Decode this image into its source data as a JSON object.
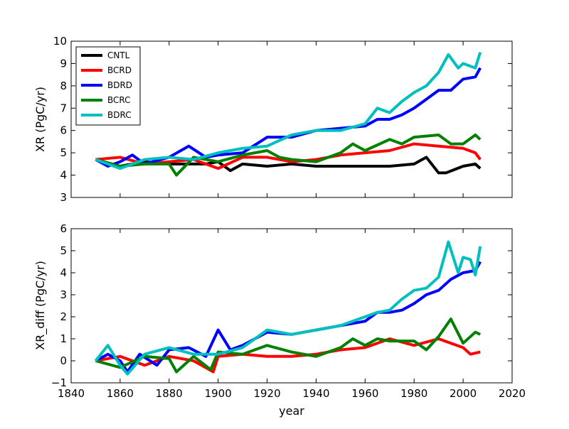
{
  "chart_data": [
    {
      "type": "line",
      "panel": "top",
      "title": "",
      "xlabel": "",
      "ylabel": "XR (PgC/yr)",
      "xlim": [
        1840,
        2020
      ],
      "ylim": [
        3,
        10
      ],
      "xticks": [
        1840,
        1860,
        1880,
        1900,
        1920,
        1940,
        1960,
        1980,
        2000,
        2020
      ],
      "yticks": [
        3,
        4,
        5,
        6,
        7,
        8,
        9,
        10
      ],
      "xtick_labels_visible": false,
      "legend": {
        "position": "top-left",
        "entries": [
          "CNTL",
          "BCRD",
          "BDRD",
          "BCRC",
          "BDRC"
        ]
      },
      "series": [
        {
          "name": "CNTL",
          "color": "#000000",
          "x": [
            1850,
            1860,
            1870,
            1880,
            1890,
            1895,
            1900,
            1905,
            1910,
            1920,
            1930,
            1940,
            1950,
            1960,
            1970,
            1980,
            1985,
            1990,
            1993,
            2000,
            2005,
            2007
          ],
          "values": [
            4.7,
            4.4,
            4.6,
            4.5,
            4.5,
            4.5,
            4.6,
            4.2,
            4.5,
            4.4,
            4.5,
            4.4,
            4.4,
            4.4,
            4.4,
            4.5,
            4.8,
            4.1,
            4.1,
            4.4,
            4.5,
            4.3
          ]
        },
        {
          "name": "BCRD",
          "color": "#ff0000",
          "x": [
            1850,
            1860,
            1870,
            1880,
            1890,
            1900,
            1910,
            1920,
            1930,
            1940,
            1950,
            1960,
            1970,
            1980,
            1990,
            2000,
            2005,
            2007
          ],
          "values": [
            4.7,
            4.8,
            4.5,
            4.6,
            4.7,
            4.3,
            4.8,
            4.8,
            4.6,
            4.7,
            4.9,
            5.0,
            5.1,
            5.4,
            5.3,
            5.2,
            5.0,
            4.7
          ]
        },
        {
          "name": "BDRD",
          "color": "#0000ff",
          "x": [
            1850,
            1855,
            1860,
            1865,
            1870,
            1880,
            1888,
            1895,
            1900,
            1910,
            1920,
            1930,
            1940,
            1950,
            1960,
            1965,
            1970,
            1975,
            1980,
            1985,
            1990,
            1995,
            2000,
            2005,
            2007
          ],
          "values": [
            4.7,
            4.4,
            4.6,
            4.9,
            4.5,
            4.8,
            5.3,
            4.8,
            4.9,
            5.0,
            5.7,
            5.7,
            6.0,
            6.1,
            6.2,
            6.5,
            6.5,
            6.7,
            7.0,
            7.4,
            7.8,
            7.8,
            8.3,
            8.4,
            8.8
          ]
        },
        {
          "name": "BCRC",
          "color": "#008000",
          "x": [
            1850,
            1860,
            1870,
            1880,
            1883,
            1890,
            1900,
            1910,
            1920,
            1925,
            1930,
            1940,
            1950,
            1955,
            1960,
            1970,
            1975,
            1980,
            1990,
            1995,
            2000,
            2005,
            2007
          ],
          "values": [
            4.7,
            4.4,
            4.5,
            4.5,
            4.0,
            4.8,
            4.6,
            4.9,
            5.1,
            4.8,
            4.7,
            4.6,
            5.0,
            5.4,
            5.1,
            5.6,
            5.4,
            5.7,
            5.8,
            5.4,
            5.4,
            5.8,
            5.6
          ]
        },
        {
          "name": "BDRC",
          "color": "#00bfbf",
          "x": [
            1850,
            1860,
            1870,
            1880,
            1890,
            1900,
            1910,
            1920,
            1930,
            1940,
            1950,
            1960,
            1965,
            1970,
            1975,
            1980,
            1985,
            1990,
            1994,
            1998,
            2000,
            2005,
            2007
          ],
          "values": [
            4.7,
            4.3,
            4.7,
            4.8,
            4.7,
            5.0,
            5.2,
            5.3,
            5.8,
            6.0,
            6.0,
            6.3,
            7.0,
            6.8,
            7.3,
            7.7,
            8.0,
            8.6,
            9.4,
            8.8,
            9.0,
            8.8,
            9.5
          ]
        }
      ]
    },
    {
      "type": "line",
      "panel": "bottom",
      "title": "",
      "xlabel": "year",
      "ylabel": "XR_diff (PgC/yr)",
      "xlim": [
        1840,
        2020
      ],
      "ylim": [
        -1,
        6
      ],
      "xticks": [
        1840,
        1860,
        1880,
        1900,
        1920,
        1940,
        1960,
        1980,
        2000,
        2020
      ],
      "yticks": [
        -1,
        0,
        1,
        2,
        3,
        4,
        5,
        6
      ],
      "series": [
        {
          "name": "BCRD",
          "color": "#ff0000",
          "x": [
            1850,
            1860,
            1870,
            1880,
            1890,
            1898,
            1900,
            1910,
            1920,
            1930,
            1940,
            1950,
            1960,
            1970,
            1980,
            1990,
            2000,
            2003,
            2007
          ],
          "values": [
            0.0,
            0.2,
            -0.2,
            0.2,
            0.0,
            -0.5,
            0.2,
            0.3,
            0.2,
            0.2,
            0.3,
            0.5,
            0.6,
            1.0,
            0.7,
            1.0,
            0.6,
            0.3,
            0.4
          ]
        },
        {
          "name": "BDRD",
          "color": "#0000ff",
          "x": [
            1850,
            1855,
            1860,
            1863,
            1868,
            1875,
            1880,
            1888,
            1895,
            1900,
            1905,
            1910,
            1920,
            1930,
            1940,
            1950,
            1960,
            1965,
            1970,
            1975,
            1980,
            1985,
            1990,
            1995,
            2000,
            2005,
            2007
          ],
          "values": [
            0.0,
            0.3,
            0.0,
            -0.5,
            0.3,
            -0.2,
            0.5,
            0.6,
            0.2,
            1.4,
            0.5,
            0.7,
            1.3,
            1.2,
            1.4,
            1.6,
            1.8,
            2.2,
            2.2,
            2.3,
            2.6,
            3.0,
            3.2,
            3.7,
            4.0,
            4.1,
            4.5
          ]
        },
        {
          "name": "BCRC",
          "color": "#008000",
          "x": [
            1850,
            1860,
            1870,
            1880,
            1883,
            1890,
            1897,
            1900,
            1910,
            1920,
            1930,
            1940,
            1950,
            1955,
            1960,
            1965,
            1970,
            1980,
            1985,
            1990,
            1995,
            2000,
            2005,
            2007
          ],
          "values": [
            0.0,
            -0.3,
            0.2,
            0.1,
            -0.5,
            0.2,
            -0.4,
            0.4,
            0.3,
            0.7,
            0.4,
            0.2,
            0.6,
            1.0,
            0.7,
            1.0,
            0.9,
            0.9,
            0.5,
            1.1,
            1.9,
            0.8,
            1.3,
            1.2
          ]
        },
        {
          "name": "BDRC",
          "color": "#00bfbf",
          "x": [
            1850,
            1855,
            1860,
            1863,
            1870,
            1880,
            1890,
            1900,
            1910,
            1920,
            1930,
            1940,
            1950,
            1960,
            1965,
            1970,
            1975,
            1980,
            1985,
            1990,
            1994,
            1998,
            2000,
            2003,
            2005,
            2007
          ],
          "values": [
            0.0,
            0.7,
            -0.2,
            -0.6,
            0.3,
            0.6,
            0.3,
            0.3,
            0.6,
            1.4,
            1.2,
            1.4,
            1.6,
            2.0,
            2.2,
            2.3,
            2.8,
            3.2,
            3.3,
            3.8,
            5.4,
            4.0,
            4.7,
            4.6,
            3.9,
            5.2
          ]
        }
      ]
    }
  ]
}
